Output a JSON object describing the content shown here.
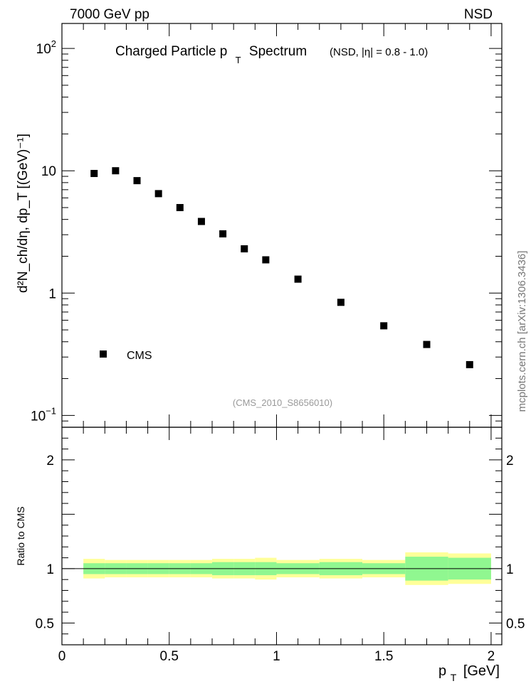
{
  "header": {
    "left": "7000 GeV pp",
    "right": "NSD"
  },
  "side_label": "mcplots.cern.ch [arXiv:1306.3436]",
  "chart_data": [
    {
      "type": "scatter",
      "title_main": "Charged Particle p",
      "title_sub": "T",
      "title_tail": "Spectrum",
      "title_qualifier": "(NSD, |η| = 0.8 - 1.0)",
      "ylabel": "d²N_ch/dη, dp_T [(GeV)⁻¹]",
      "y_scale": "log",
      "ylim": [
        0.08,
        160
      ],
      "xlim": [
        0,
        2.05
      ],
      "y_ticks": [
        {
          "value": 0.1,
          "label": "10",
          "exp": "−1"
        },
        {
          "value": 1,
          "label": "1",
          "exp": ""
        },
        {
          "value": 10,
          "label": "10",
          "exp": ""
        },
        {
          "value": 100,
          "label": "10",
          "exp": "2"
        }
      ],
      "series": [
        {
          "name": "CMS",
          "color": "#000000",
          "x": [
            0.15,
            0.25,
            0.35,
            0.45,
            0.55,
            0.65,
            0.75,
            0.85,
            0.95,
            1.1,
            1.3,
            1.5,
            1.7,
            1.9
          ],
          "y": [
            9.5,
            10.0,
            8.3,
            6.5,
            5.0,
            3.85,
            3.05,
            2.3,
            1.87,
            1.3,
            0.84,
            0.54,
            0.38,
            0.26
          ]
        }
      ],
      "legend": {
        "position": "bottom-left",
        "label": "CMS"
      },
      "annotation": "(CMS_2010_S8656010)"
    },
    {
      "type": "area",
      "ylabel": "Ratio to CMS",
      "xlabel_main": "p",
      "xlabel_sub": "T",
      "xlabel_unit": "[GeV]",
      "ylim": [
        0.3,
        2.3
      ],
      "xlim": [
        0,
        2.05
      ],
      "y_ticks": [
        {
          "value": 0.5,
          "label": "0.5"
        },
        {
          "value": 1,
          "label": "1"
        },
        {
          "value": 2,
          "label": "2"
        }
      ],
      "x_ticks": [
        {
          "value": 0,
          "label": "0"
        },
        {
          "value": 0.5,
          "label": "0.5"
        },
        {
          "value": 1,
          "label": "1"
        },
        {
          "value": 1.5,
          "label": "1.5"
        },
        {
          "value": 2,
          "label": "2"
        }
      ],
      "reference_line": 1.0,
      "bins": [
        {
          "x0": 0.1,
          "x1": 0.2,
          "stat": 0.05,
          "total": 0.09
        },
        {
          "x0": 0.2,
          "x1": 0.3,
          "stat": 0.05,
          "total": 0.08
        },
        {
          "x0": 0.3,
          "x1": 0.4,
          "stat": 0.05,
          "total": 0.08
        },
        {
          "x0": 0.4,
          "x1": 0.5,
          "stat": 0.05,
          "total": 0.08
        },
        {
          "x0": 0.5,
          "x1": 0.6,
          "stat": 0.05,
          "total": 0.08
        },
        {
          "x0": 0.6,
          "x1": 0.7,
          "stat": 0.05,
          "total": 0.08
        },
        {
          "x0": 0.7,
          "x1": 0.8,
          "stat": 0.06,
          "total": 0.09
        },
        {
          "x0": 0.8,
          "x1": 0.9,
          "stat": 0.06,
          "total": 0.09
        },
        {
          "x0": 0.9,
          "x1": 1.0,
          "stat": 0.06,
          "total": 0.1
        },
        {
          "x0": 1.0,
          "x1": 1.2,
          "stat": 0.05,
          "total": 0.08
        },
        {
          "x0": 1.2,
          "x1": 1.4,
          "stat": 0.06,
          "total": 0.09
        },
        {
          "x0": 1.4,
          "x1": 1.6,
          "stat": 0.05,
          "total": 0.08
        },
        {
          "x0": 1.6,
          "x1": 1.8,
          "stat": 0.11,
          "total": 0.15
        },
        {
          "x0": 1.8,
          "x1": 2.0,
          "stat": 0.1,
          "total": 0.14
        }
      ],
      "colors": {
        "stat_band": "#90f790",
        "total_band": "#ffff99",
        "ref_line": "#000000"
      }
    }
  ]
}
